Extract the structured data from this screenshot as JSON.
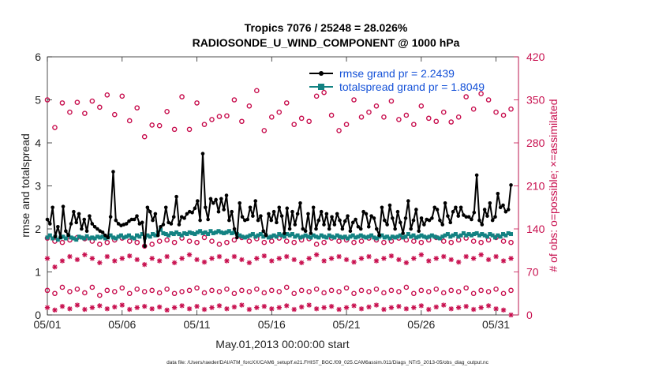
{
  "chart_data": {
    "type": "line",
    "title_line1": "Tropics 7076 / 25248 = 28.026%",
    "title_line2": "RADIOSONDE_U_WIND_COMPONENT @ 1000 hPa",
    "xlabel": "May.01,2013 00:00:00 start",
    "ylabel_left": "rmse and totalspread",
    "ylabel_right": "# of obs: o=possible; ×=assimilated",
    "footnote": "data file: /Users/raeder/DAI/ATM_forcXX/CAM6_setup/f.e21.FHIST_BGC.f09_025.CAM6assim.011/Diags_NTrS_2013-05/obs_diag_output.nc",
    "xlim": [
      0,
      31.5
    ],
    "ylim_left": [
      0,
      6
    ],
    "ylim_right": [
      0,
      420
    ],
    "x_ticks": [
      0,
      5,
      10,
      15,
      20,
      25,
      30
    ],
    "x_tick_labels": [
      "05/01",
      "05/06",
      "05/11",
      "05/16",
      "05/21",
      "05/26",
      "05/31"
    ],
    "y_left_ticks": [
      0,
      1,
      2,
      3,
      4,
      5,
      6
    ],
    "y_right_ticks": [
      0,
      70,
      140,
      210,
      280,
      350,
      420
    ],
    "colors": {
      "rmse": "#000000",
      "spread": "#138282",
      "obs": "#c8104f",
      "right_axis": "#c8104f"
    },
    "legend": [
      {
        "label": "rmse grand pr = 2.2439",
        "series": "rmse"
      },
      {
        "label": "totalspread grand pr = 1.8049",
        "series": "spread"
      }
    ],
    "legend_text_color": "#1552d8",
    "series": [
      {
        "name": "rmse",
        "values": [
          2.22,
          2.12,
          2.5,
          1.82,
          2.05,
          1.8,
          2.52,
          1.95,
          1.85,
          2.12,
          2.4,
          2.15,
          2.35,
          2.0,
          2.22,
          1.95,
          2.3,
          2.12,
          2.05,
          2.0,
          1.95,
          1.92,
          1.85,
          1.8,
          2.28,
          3.33,
          2.2,
          2.12,
          2.08,
          2.1,
          2.12,
          2.18,
          2.22,
          2.22,
          2.3,
          2.12,
          2.15,
          1.6,
          2.5,
          2.4,
          2.2,
          2.35,
          1.85,
          2.05,
          2.1,
          2.5,
          2.15,
          2.12,
          2.28,
          2.75,
          2.1,
          2.28,
          2.25,
          2.35,
          2.4,
          2.38,
          2.48,
          2.65,
          2.2,
          3.75,
          2.5,
          2.22,
          2.7,
          2.6,
          2.68,
          2.4,
          2.7,
          2.45,
          2.78,
          2.2,
          2.4,
          2.0,
          1.8,
          2.6,
          2.28,
          2.2,
          2.22,
          2.5,
          2.3,
          2.65,
          2.2,
          2.3,
          1.95,
          1.85,
          2.35,
          2.2,
          2.4,
          2.15,
          2.5,
          2.3,
          1.9,
          2.48,
          2.0,
          2.4,
          2.1,
          2.35,
          2.6,
          2.0,
          1.95,
          2.35,
          1.9,
          2.5,
          2.0,
          2.2,
          2.4,
          2.1,
          2.35,
          2.0,
          2.28,
          2.1,
          2.35,
          2.2,
          2.0,
          2.18,
          2.3,
          1.95,
          2.15,
          2.22,
          2.05,
          2.0,
          2.4,
          2.35,
          2.05,
          2.3,
          2.25,
          2.0,
          1.85,
          2.5,
          2.2,
          2.1,
          2.55,
          2.25,
          2.0,
          2.4,
          2.15,
          1.9,
          2.25,
          2.65,
          2.0,
          2.2,
          2.45,
          1.95,
          2.25,
          2.1,
          2.22,
          2.2,
          2.25,
          2.5,
          2.45,
          2.2,
          2.1,
          2.6,
          2.3,
          2.15,
          2.4,
          2.5,
          2.3,
          2.5,
          2.32,
          2.28,
          2.28,
          2.22,
          2.38,
          3.25,
          2.2,
          2.1,
          2.45,
          2.3,
          2.6,
          2.2,
          2.28,
          2.82,
          2.5,
          2.55,
          2.4,
          2.45,
          3.02
        ]
      },
      {
        "name": "totalspread",
        "values": [
          1.8,
          1.85,
          1.78,
          1.82,
          1.75,
          1.8,
          1.82,
          1.78,
          1.85,
          1.8,
          1.78,
          1.75,
          1.82,
          1.8,
          1.78,
          1.83,
          1.78,
          1.8,
          1.78,
          1.82,
          1.8,
          1.82,
          1.78,
          1.8,
          1.85,
          1.8,
          1.78,
          1.82,
          1.85,
          1.8,
          1.82,
          1.85,
          1.8,
          1.78,
          1.85,
          1.82,
          1.88,
          1.8,
          1.85,
          1.82,
          1.88,
          1.85,
          1.92,
          1.98,
          1.9,
          1.88,
          1.85,
          1.9,
          1.88,
          1.92,
          1.88,
          1.85,
          1.9,
          1.88,
          1.92,
          1.9,
          1.88,
          1.92,
          1.95,
          1.9,
          1.92,
          1.88,
          1.95,
          1.9,
          1.92,
          1.95,
          1.92,
          1.9,
          1.92,
          1.95,
          1.9,
          1.92,
          1.88,
          1.85,
          1.82,
          1.8,
          1.82,
          1.85,
          1.88,
          1.82,
          1.85,
          1.88,
          1.82,
          1.85,
          1.8,
          1.82,
          1.85,
          1.82,
          1.88,
          1.85,
          1.82,
          1.88,
          1.85,
          1.88,
          1.82,
          1.85,
          1.8,
          1.82,
          1.85,
          1.82,
          1.8,
          1.85,
          1.82,
          1.8,
          1.85,
          1.82,
          1.8,
          1.85,
          1.82,
          1.8,
          1.85,
          1.82,
          1.8,
          1.82,
          1.78,
          1.82,
          1.85,
          1.8,
          1.82,
          1.85,
          1.82,
          1.8,
          1.82,
          1.85,
          1.8,
          1.78,
          1.82,
          1.85,
          1.8,
          1.82,
          1.78,
          1.82,
          1.8,
          1.82,
          1.85,
          1.8,
          1.82,
          1.88,
          1.82,
          1.85,
          1.8,
          1.82,
          1.85,
          1.82,
          1.8,
          1.82,
          1.85,
          1.82,
          1.8,
          1.78,
          1.82,
          1.85,
          1.88,
          1.82,
          1.85,
          1.88,
          1.82,
          1.85,
          1.9,
          1.85,
          1.88,
          1.85,
          1.88,
          1.9,
          1.85,
          1.88,
          1.85,
          1.82,
          1.88,
          1.85,
          1.8,
          1.85,
          1.82,
          1.88,
          1.85,
          1.9,
          1.88
        ]
      },
      {
        "name": "obs_possible_group1",
        "x": [
          0,
          0.5,
          1,
          1.5,
          2,
          2.5,
          3,
          3.5,
          4,
          4.5,
          5,
          5.5,
          6,
          6.5,
          7,
          7.5,
          8,
          8.5,
          9,
          9.5,
          10,
          10.5,
          11,
          11.5,
          12,
          12.5,
          13,
          13.5,
          14,
          14.5,
          15,
          15.5,
          16,
          16.5,
          17,
          17.5,
          18,
          18.5,
          19,
          19.5,
          20,
          20.5,
          21,
          21.5,
          22,
          22.5,
          23,
          23.5,
          24,
          24.5,
          25,
          25.5,
          26,
          26.5,
          27,
          27.5,
          28,
          28.5,
          29,
          29.5,
          30,
          30.5,
          31
        ],
        "values": [
          350,
          305,
          345,
          330,
          346,
          328,
          348,
          338,
          358,
          326,
          356,
          316,
          337,
          290,
          309,
          308,
          331,
          302,
          355,
          302,
          345,
          310,
          318,
          323,
          324,
          350,
          315,
          340,
          365,
          300,
          322,
          330,
          345,
          310,
          320,
          315,
          356,
          362,
          325,
          300,
          310,
          350,
          322,
          330,
          340,
          322,
          348,
          318,
          325,
          310,
          340,
          320,
          315,
          330,
          314,
          322,
          355,
          335,
          360,
          350,
          330,
          325,
          335
        ]
      },
      {
        "name": "obs_possible_group2",
        "x": [
          0,
          0.5,
          1,
          1.5,
          2,
          2.5,
          3,
          3.5,
          4,
          4.5,
          5,
          5.5,
          6,
          6.5,
          7,
          7.5,
          8,
          8.5,
          9,
          9.5,
          10,
          10.5,
          11,
          11.5,
          12,
          12.5,
          13,
          13.5,
          14,
          14.5,
          15,
          15.5,
          16,
          16.5,
          17,
          17.5,
          18,
          18.5,
          19,
          19.5,
          20,
          20.5,
          21,
          21.5,
          22,
          22.5,
          23,
          23.5,
          24,
          24.5,
          25,
          25.5,
          26,
          26.5,
          27,
          27.5,
          28,
          28.5,
          29,
          29.5,
          30,
          30.5,
          31
        ],
        "values": [
          125,
          120,
          118,
          122,
          126,
          124,
          120,
          115,
          118,
          122,
          125,
          120,
          118,
          112,
          115,
          120,
          122,
          118,
          125,
          120,
          118,
          126,
          120,
          115,
          118,
          122,
          126,
          120,
          124,
          118,
          120,
          125,
          120,
          118,
          122,
          124,
          115,
          118,
          125,
          120,
          122,
          118,
          120,
          125,
          122,
          118,
          120,
          125,
          122,
          120,
          118,
          122,
          126,
          120,
          118,
          122,
          125,
          120,
          118,
          122,
          126,
          120,
          118
        ]
      },
      {
        "name": "obs_possible_group3",
        "x": [
          0,
          0.5,
          1,
          1.5,
          2,
          2.5,
          3,
          3.5,
          4,
          4.5,
          5,
          5.5,
          6,
          6.5,
          7,
          7.5,
          8,
          8.5,
          9,
          9.5,
          10,
          10.5,
          11,
          11.5,
          12,
          12.5,
          13,
          13.5,
          14,
          14.5,
          15,
          15.5,
          16,
          16.5,
          17,
          17.5,
          18,
          18.5,
          19,
          19.5,
          20,
          20.5,
          21,
          21.5,
          22,
          22.5,
          23,
          23.5,
          24,
          24.5,
          25,
          25.5,
          26,
          26.5,
          27,
          27.5,
          28,
          28.5,
          29,
          29.5,
          30,
          30.5,
          31
        ],
        "values": [
          40,
          35,
          45,
          38,
          42,
          36,
          45,
          32,
          40,
          38,
          44,
          35,
          42,
          38,
          40,
          36,
          42,
          35,
          38,
          40,
          44,
          36,
          40,
          38,
          42,
          35,
          40,
          38,
          42,
          36,
          40,
          38,
          45,
          35,
          40,
          38,
          42,
          36,
          40,
          38,
          44,
          35,
          40,
          38,
          42,
          36,
          40,
          38,
          45,
          35,
          40,
          38,
          42,
          36,
          40,
          38,
          44,
          35,
          40,
          38,
          42,
          35,
          40
        ]
      },
      {
        "name": "obs_assimilated_group1",
        "x": [
          0,
          0.5,
          1,
          1.5,
          2,
          2.5,
          3,
          3.5,
          4,
          4.5,
          5,
          5.5,
          6,
          6.5,
          7,
          7.5,
          8,
          8.5,
          9,
          9.5,
          10,
          10.5,
          11,
          11.5,
          12,
          12.5,
          13,
          13.5,
          14,
          14.5,
          15,
          15.5,
          16,
          16.5,
          17,
          17.5,
          18,
          18.5,
          19,
          19.5,
          20,
          20.5,
          21,
          21.5,
          22,
          22.5,
          23,
          23.5,
          24,
          24.5,
          25,
          25.5,
          26,
          26.5,
          27,
          27.5,
          28,
          28.5,
          29,
          29.5,
          30,
          30.5,
          31
        ],
        "values": [
          92,
          78,
          88,
          95,
          90,
          98,
          92,
          85,
          95,
          88,
          92,
          96,
          90,
          82,
          92,
          88,
          95,
          85,
          92,
          98,
          90,
          86,
          92,
          95,
          88,
          95,
          90,
          85,
          92,
          96,
          88,
          92,
          95,
          90,
          85,
          92,
          98,
          88,
          92,
          95,
          90,
          86,
          92,
          95,
          88,
          92,
          96,
          90,
          85,
          92,
          98,
          88,
          92,
          95,
          90,
          86,
          95,
          92,
          98,
          90,
          95,
          88,
          92
        ]
      },
      {
        "name": "obs_assimilated_group2",
        "x": [
          0,
          0.5,
          1,
          1.5,
          2,
          2.5,
          3,
          3.5,
          4,
          4.5,
          5,
          5.5,
          6,
          6.5,
          7,
          7.5,
          8,
          8.5,
          9,
          9.5,
          10,
          10.5,
          11,
          11.5,
          12,
          12.5,
          13,
          13.5,
          14,
          14.5,
          15,
          15.5,
          16,
          16.5,
          17,
          17.5,
          18,
          18.5,
          19,
          19.5,
          20,
          20.5,
          21,
          21.5,
          22,
          22.5,
          23,
          23.5,
          24,
          24.5,
          25,
          25.5,
          26,
          26.5,
          27,
          27.5,
          28,
          28.5,
          29,
          29.5,
          30,
          30.5,
          31
        ],
        "values": [
          12,
          8,
          14,
          10,
          16,
          9,
          12,
          15,
          10,
          13,
          16,
          9,
          12,
          14,
          10,
          13,
          8,
          12,
          15,
          10,
          14,
          9,
          12,
          15,
          10,
          13,
          16,
          9,
          12,
          14,
          10,
          12,
          15,
          9,
          13,
          16,
          10,
          12,
          14,
          9,
          12,
          15,
          10,
          13,
          16,
          9,
          12,
          14,
          10,
          12,
          15,
          9,
          13,
          16,
          10,
          12,
          14,
          9,
          12,
          15,
          10,
          8,
          0
        ]
      }
    ]
  }
}
